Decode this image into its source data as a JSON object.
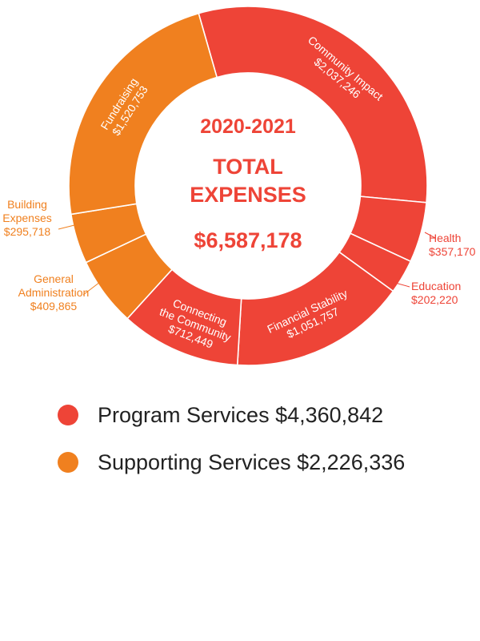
{
  "chart_data": {
    "type": "pie",
    "variant": "donut",
    "center": {
      "years": "2020-2021",
      "title_line1": "TOTAL",
      "title_line2": "EXPENSES",
      "total": "$6,587,178"
    },
    "slices": [
      {
        "key": "community",
        "name": "Community Impact",
        "value": 2037246,
        "value_label": "$2,037,246",
        "group": "program"
      },
      {
        "key": "health",
        "name": "Health",
        "value": 357170,
        "value_label": "$357,170",
        "group": "program"
      },
      {
        "key": "education",
        "name": "Education",
        "value": 202220,
        "value_label": "$202,220",
        "group": "program"
      },
      {
        "key": "financial",
        "name": "Financial Stability",
        "value": 1051757,
        "value_label": "$1,051,757",
        "group": "program"
      },
      {
        "key": "connecting",
        "name": "Connecting the Community",
        "name_lines": [
          "Connecting",
          "the Community"
        ],
        "value": 712449,
        "value_label": "$712,449",
        "group": "program"
      },
      {
        "key": "general",
        "name": "General Administration",
        "name_lines": [
          "General",
          "Administration"
        ],
        "value": 409865,
        "value_label": "$409,865",
        "group": "supporting"
      },
      {
        "key": "building",
        "name": "Building Expenses",
        "name_lines": [
          "Building",
          "Expenses"
        ],
        "value": 295718,
        "value_label": "$295,718",
        "group": "supporting"
      },
      {
        "key": "fundraising",
        "name": "Fundraising",
        "value": 1520753,
        "value_label": "$1,520,753",
        "group": "supporting"
      }
    ],
    "legend": [
      {
        "group": "program",
        "label": "Program Services $4,360,842",
        "value": 4360842
      },
      {
        "group": "supporting",
        "label": "Supporting Services $2,226,336",
        "value": 2226336
      }
    ],
    "colors": {
      "program": "#ee4437",
      "supporting": "#f0801f",
      "program_text": "#ee4437",
      "supporting_text": "#f0801f",
      "separator": "#ffffff"
    }
  }
}
